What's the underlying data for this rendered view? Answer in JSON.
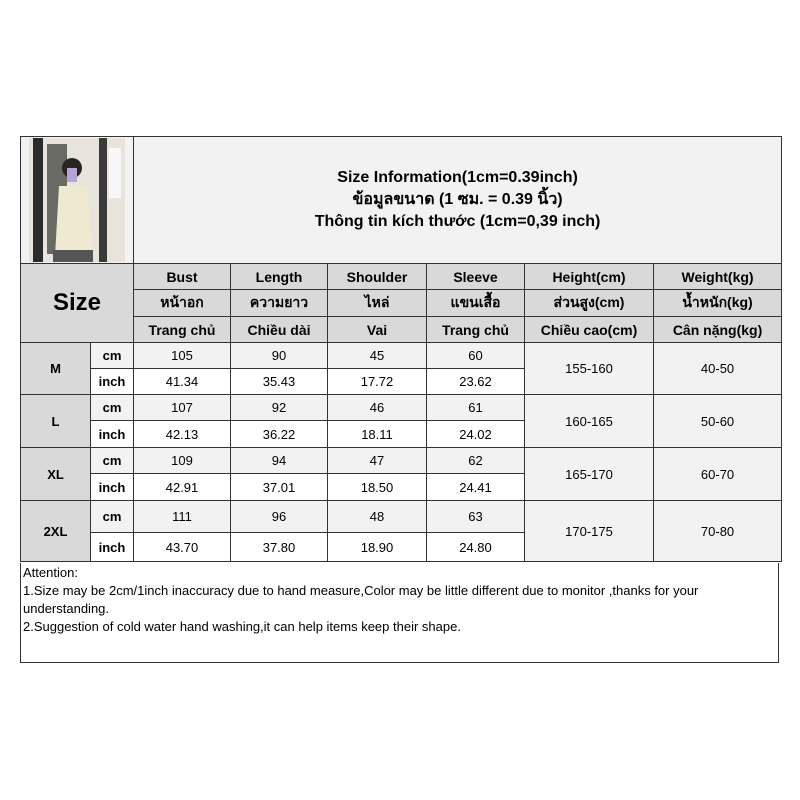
{
  "title": {
    "line1": "Size Information(1cm=0.39inch)",
    "line2": "ข้อมูลขนาด (1 ซม. = 0.39 นิ้ว)",
    "line3": "Thông tin kích thước (1cm=0,39 inch)"
  },
  "size_label": "Size",
  "columns": [
    {
      "en": "Bust",
      "th": "หน้าอก",
      "vi": "Trang chủ"
    },
    {
      "en": "Length",
      "th": "ความยาว",
      "vi": "Chiều dài"
    },
    {
      "en": "Shoulder",
      "th": "ไหล่",
      "vi": "Vai"
    },
    {
      "en": "Sleeve",
      "th": "แขนเสื้อ",
      "vi": "Trang chủ"
    },
    {
      "en": "Height(cm)",
      "th": "ส่วนสูง(cm)",
      "vi": "Chiều cao(cm)"
    },
    {
      "en": "Weight(kg)",
      "th": "น้ำหนัก(kg)",
      "vi": "Cân nặng(kg)"
    }
  ],
  "rows": [
    {
      "size": "M",
      "cm_label": "cm",
      "inch_label": "inch",
      "cm": [
        "105",
        "90",
        "45",
        "60"
      ],
      "inch": [
        "41.34",
        "35.43",
        "17.72",
        "23.62"
      ],
      "height": "155-160",
      "weight": "40-50"
    },
    {
      "size": "L",
      "cm_label": "cm",
      "inch_label": "inch",
      "cm": [
        "107",
        "92",
        "46",
        "61"
      ],
      "inch": [
        "42.13",
        "36.22",
        "18.11",
        "24.02"
      ],
      "height": "160-165",
      "weight": "50-60"
    },
    {
      "size": "XL",
      "cm_label": "cm",
      "inch_label": "inch",
      "cm": [
        "109",
        "94",
        "47",
        "62"
      ],
      "inch": [
        "42.91",
        "37.01",
        "18.50",
        "24.41"
      ],
      "height": "165-170",
      "weight": "60-70"
    },
    {
      "size": "2XL",
      "cm_label": "cm",
      "inch_label": "inch",
      "cm": [
        "111",
        "96",
        "48",
        "63"
      ],
      "inch": [
        "43.70",
        "37.80",
        "18.90",
        "24.80"
      ],
      "height": "170-175",
      "weight": "70-80"
    }
  ],
  "attention": {
    "heading": "Attention:",
    "note1": "1.Size may be 2cm/1inch inaccuracy due to hand measure,Color may be little different due to monitor ,thanks for your understanding.",
    "note2": "2.Suggestion of cold water hand washing,it can help items keep their shape."
  }
}
